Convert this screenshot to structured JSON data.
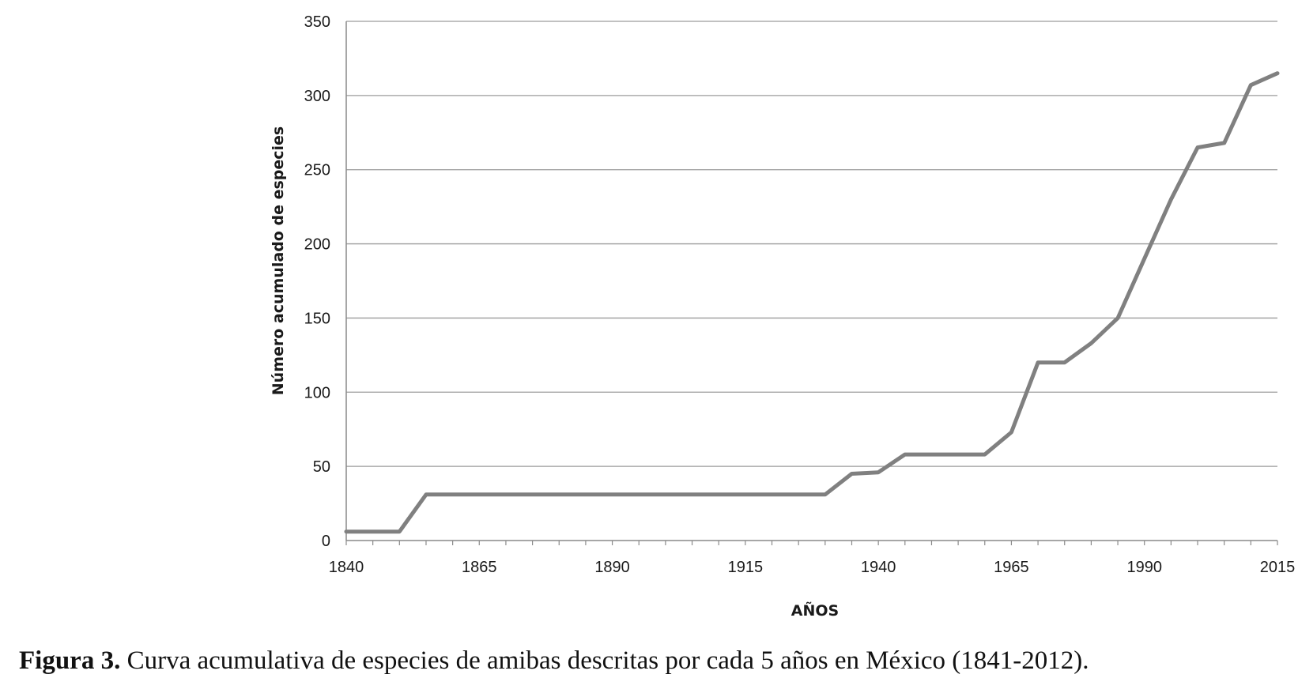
{
  "chart_data": {
    "type": "line",
    "title": "",
    "xlabel": "AÑOS",
    "ylabel": "Número acumulado de especies",
    "xlim": [
      1840,
      2015
    ],
    "ylim": [
      0,
      350
    ],
    "x_ticks": [
      1840,
      1865,
      1890,
      1915,
      1940,
      1965,
      1990,
      2015
    ],
    "y_ticks": [
      0,
      50,
      100,
      150,
      200,
      250,
      300,
      350
    ],
    "grid": "horizontal",
    "legend": "none",
    "line_color": "#808080",
    "series": [
      {
        "x": [
          1840,
          1845,
          1850,
          1855,
          1860,
          1865,
          1870,
          1875,
          1880,
          1885,
          1890,
          1895,
          1900,
          1905,
          1910,
          1915,
          1920,
          1925,
          1930,
          1935,
          1940,
          1945,
          1950,
          1955,
          1960,
          1965,
          1970,
          1975,
          1980,
          1985,
          1990,
          1995,
          2000,
          2005,
          2010,
          2015
        ],
        "y": [
          6,
          6,
          6,
          31,
          31,
          31,
          31,
          31,
          31,
          31,
          31,
          31,
          31,
          31,
          31,
          31,
          31,
          31,
          31,
          45,
          46,
          58,
          58,
          58,
          58,
          73,
          120,
          120,
          133,
          150,
          190,
          230,
          265,
          268,
          307,
          315
        ]
      }
    ]
  },
  "caption": {
    "label": "Figura 3.",
    "text": " Curva acumulativa de especies de amibas descritas por cada 5 años en México (1841-2012)."
  }
}
